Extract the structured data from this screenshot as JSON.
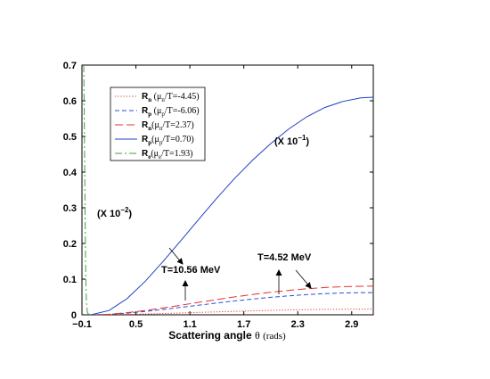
{
  "chart_data": {
    "type": "line",
    "xlabel": "Scattering angle θ (rads)",
    "xlabel_main": "Scattering angle",
    "xlabel_symbol": "θ",
    "xlabel_unit": "(rads)",
    "xlim": [
      -0.1,
      3.14
    ],
    "ylim": [
      0,
      0.7
    ],
    "xticks": [
      -0.1,
      0.5,
      1.1,
      1.7,
      2.3,
      2.9
    ],
    "xtick_labels": [
      "−0.1",
      "0.5",
      "1.1",
      "1.7",
      "2.3",
      "2.9"
    ],
    "yticks": [
      0,
      0.1,
      0.2,
      0.3,
      0.4,
      0.5,
      0.6,
      0.7
    ],
    "ytick_labels": [
      "0",
      "0.1",
      "0.2",
      "0.3",
      "0.4",
      "0.5",
      "0.6",
      "0.7"
    ],
    "grid": false,
    "legend_position": "top-left",
    "series": [
      {
        "legend_prefix": "R",
        "legend_sub": "n",
        "legend_rest": " (μ",
        "legend_sub2": "n",
        "legend_end": "/T=-4.45)",
        "color": "#e8312a",
        "dash": "dotted",
        "x": [
          0.0,
          0.2,
          0.4,
          0.6,
          0.8,
          1.0,
          1.2,
          1.4,
          1.6,
          1.8,
          2.0,
          2.2,
          2.4,
          2.6,
          2.8,
          3.0,
          3.14
        ],
        "y": [
          0.0,
          0.0003,
          0.0011,
          0.0022,
          0.0036,
          0.0051,
          0.0067,
          0.0082,
          0.0097,
          0.0111,
          0.0124,
          0.0135,
          0.0144,
          0.0151,
          0.0156,
          0.0158,
          0.0159
        ]
      },
      {
        "legend_prefix": "R",
        "legend_sub": "p",
        "legend_rest": " (μ",
        "legend_sub2": "p",
        "legend_end": "/T=-6.06)",
        "color": "#2a4fd6",
        "dash": "dashed",
        "x": [
          0.0,
          0.2,
          0.4,
          0.6,
          0.8,
          1.0,
          1.2,
          1.4,
          1.6,
          1.8,
          2.0,
          2.2,
          2.4,
          2.6,
          2.8,
          3.0,
          3.14
        ],
        "y": [
          0.0,
          0.0012,
          0.0045,
          0.0093,
          0.0149,
          0.0209,
          0.027,
          0.0331,
          0.0389,
          0.0442,
          0.049,
          0.0531,
          0.0566,
          0.0593,
          0.0611,
          0.0621,
          0.0623
        ]
      },
      {
        "legend_prefix": "R",
        "legend_sub": "n",
        "legend_rest": "(μ",
        "legend_sub2": "n",
        "legend_end": "/T=2.37)",
        "color": "#e8312a",
        "dash": "longdash",
        "x": [
          0.0,
          0.2,
          0.4,
          0.6,
          0.8,
          1.0,
          1.2,
          1.4,
          1.6,
          1.8,
          2.0,
          2.2,
          2.4,
          2.6,
          2.8,
          3.0,
          3.14
        ],
        "y": [
          0.0,
          0.0015,
          0.0058,
          0.012,
          0.0192,
          0.027,
          0.0349,
          0.0427,
          0.0502,
          0.057,
          0.0632,
          0.0685,
          0.073,
          0.0765,
          0.0789,
          0.0801,
          0.0803
        ]
      },
      {
        "legend_prefix": "R",
        "legend_sub": "p",
        "legend_rest": "(μ",
        "legend_sub2": "p",
        "legend_end": "/T=0.70)",
        "color": "#1f3fc7",
        "dash": "solid",
        "x": [
          0.0,
          0.2,
          0.4,
          0.6,
          0.8,
          1.0,
          1.2,
          1.4,
          1.6,
          1.8,
          2.0,
          2.2,
          2.4,
          2.6,
          2.8,
          3.0,
          3.14
        ],
        "y": [
          0.0,
          0.012,
          0.045,
          0.093,
          0.149,
          0.208,
          0.268,
          0.327,
          0.383,
          0.434,
          0.48,
          0.521,
          0.555,
          0.581,
          0.598,
          0.608,
          0.61
        ]
      },
      {
        "legend_prefix": "R",
        "legend_sub": "e",
        "legend_rest": "(μ",
        "legend_sub2": "e",
        "legend_end": "/T=1.93)",
        "color": "#3aa63a",
        "dash": "dashdot",
        "x": [
          -0.08,
          -0.075,
          -0.07,
          -0.065,
          -0.06,
          -0.055,
          -0.05,
          -0.04,
          -0.03,
          -0.02,
          0.0
        ],
        "y": [
          0.7,
          0.58,
          0.42,
          0.27,
          0.15,
          0.075,
          0.035,
          0.008,
          0.002,
          0.0005,
          0.0
        ]
      }
    ],
    "annotations": [
      {
        "text": "(X 10",
        "sup": "−1",
        "end": ")"
      },
      {
        "text": "(X 10",
        "sup": "−2",
        "end": ")"
      },
      {
        "text": "T=10.56 MeV"
      },
      {
        "text": "T=4.52 MeV"
      }
    ]
  }
}
